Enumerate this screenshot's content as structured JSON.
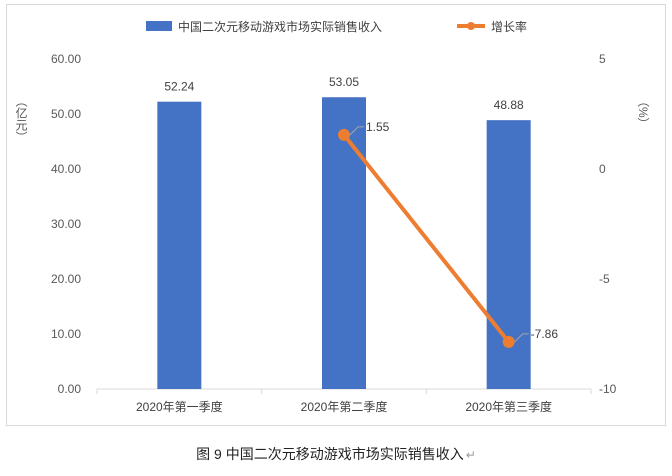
{
  "chart_data": {
    "type": "bar",
    "categories": [
      "2020年第一季度",
      "2020年第二季度",
      "2020年第三季度"
    ],
    "series": [
      {
        "name": "中国二次元移动游戏市场实际销售收入",
        "type": "bar",
        "axis": "left",
        "values": [
          52.24,
          53.05,
          48.88
        ],
        "labels": [
          "52.24",
          "53.05",
          "48.88"
        ],
        "color": "#4472C4"
      },
      {
        "name": "增长率",
        "type": "line",
        "axis": "right",
        "points": [
          {
            "category": "2020年第二季度",
            "value": 1.55,
            "label": "1.55"
          },
          {
            "category": "2020年第三季度",
            "value": -7.86,
            "label": "-7.86"
          }
        ],
        "color": "#ED7D31"
      }
    ],
    "y_left": {
      "unit": "（亿元）",
      "min": 0,
      "max": 60,
      "ticks": [
        "0.00",
        "10.00",
        "20.00",
        "30.00",
        "40.00",
        "50.00",
        "60.00"
      ]
    },
    "y_right": {
      "unit": "（%）",
      "min": -10,
      "max": 5,
      "ticks": [
        "-10",
        "-5",
        "0",
        "5"
      ]
    },
    "legend_position": "top",
    "grid": false
  },
  "caption": {
    "text": "图 9  中国二次元移动游戏市场实际销售收入",
    "mark": "↵"
  }
}
